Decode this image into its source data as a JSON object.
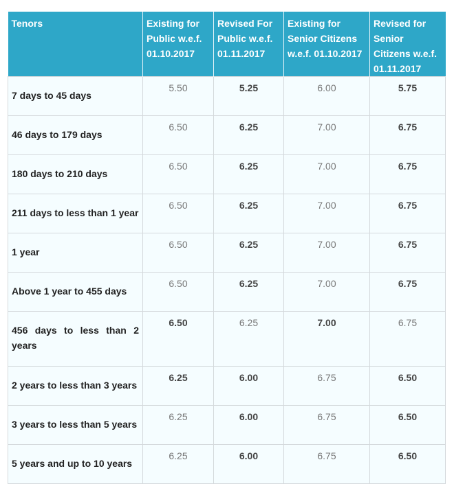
{
  "table": {
    "headers": [
      "Tenors",
      "Existing for Public w.e.f. 01.10.2017",
      "Revised For Public w.e.f. 01.11.2017",
      "Existing for Senior Citizens w.e.f. 01.10.2017",
      "Revised for Senior Citizens w.e.f. 01.11.2017"
    ],
    "header_color": "#2ea7c8",
    "rows": [
      {
        "tenor": "7 days to 45 days",
        "values": [
          "5.50",
          "5.25",
          "6.00",
          "5.75"
        ],
        "bold": [
          false,
          true,
          false,
          true
        ]
      },
      {
        "tenor": "46 days to 179 days",
        "values": [
          "6.50",
          "6.25",
          "7.00",
          "6.75"
        ],
        "bold": [
          false,
          true,
          false,
          true
        ]
      },
      {
        "tenor": "180 days to 210 days",
        "values": [
          "6.50",
          "6.25",
          "7.00",
          "6.75"
        ],
        "bold": [
          false,
          true,
          false,
          true
        ]
      },
      {
        "tenor": "211 days to less than 1 year",
        "values": [
          "6.50",
          "6.25",
          "7.00",
          "6.75"
        ],
        "bold": [
          false,
          true,
          false,
          true
        ]
      },
      {
        "tenor": "1 year",
        "values": [
          "6.50",
          "6.25",
          "7.00",
          "6.75"
        ],
        "bold": [
          false,
          true,
          false,
          true
        ]
      },
      {
        "tenor": "Above 1 year to 455 days",
        "values": [
          "6.50",
          "6.25",
          "7.00",
          "6.75"
        ],
        "bold": [
          false,
          true,
          false,
          true
        ]
      },
      {
        "tenor": "456 days to less than 2 years",
        "values": [
          "6.50",
          "6.25",
          "7.00",
          "6.75"
        ],
        "bold": [
          true,
          false,
          true,
          false
        ]
      },
      {
        "tenor": "2 years to less than 3 years",
        "values": [
          "6.25",
          "6.00",
          "6.75",
          "6.50"
        ],
        "bold": [
          true,
          true,
          false,
          true
        ]
      },
      {
        "tenor": "3 years to less than 5 years",
        "values": [
          "6.25",
          "6.00",
          "6.75",
          "6.50"
        ],
        "bold": [
          false,
          true,
          false,
          true
        ]
      },
      {
        "tenor": "5 years and up to 10 years",
        "values": [
          "6.25",
          "6.00",
          "6.75",
          "6.50"
        ],
        "bold": [
          false,
          true,
          false,
          true
        ]
      }
    ]
  }
}
